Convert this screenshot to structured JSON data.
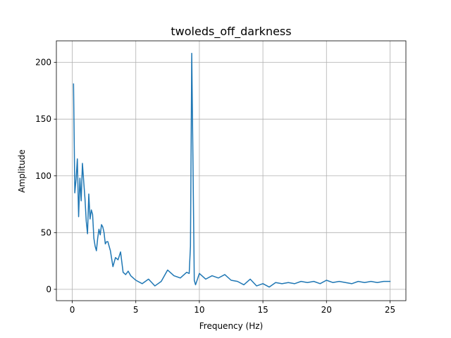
{
  "chart_data": {
    "type": "line",
    "title": "twoleds_off_darkness",
    "xlabel": "Frequency (Hz)",
    "ylabel": "Amplitude",
    "xlim": [
      -1.25,
      26.25
    ],
    "ylim": [
      -10,
      219
    ],
    "xticks": [
      0,
      5,
      10,
      15,
      20,
      25
    ],
    "yticks": [
      0,
      50,
      100,
      150,
      200
    ],
    "grid": true,
    "colors": {
      "series": "#1f77b4"
    },
    "series": [
      {
        "x": [
          0.1,
          0.2,
          0.3,
          0.4,
          0.5,
          0.6,
          0.7,
          0.8,
          0.9,
          1.0,
          1.1,
          1.2,
          1.3,
          1.4,
          1.5,
          1.6,
          1.7,
          1.8,
          1.9,
          2.0,
          2.1,
          2.2,
          2.3,
          2.4,
          2.5,
          2.6,
          2.7,
          2.8,
          2.9,
          3.0,
          3.2,
          3.4,
          3.6,
          3.8,
          4.0,
          4.2,
          4.4,
          4.6,
          4.8,
          5.0,
          5.5,
          6.0,
          6.5,
          7.0,
          7.5,
          8.0,
          8.5,
          9.0,
          9.2,
          9.3,
          9.4,
          9.5,
          9.6,
          9.7,
          10.0,
          10.5,
          11.0,
          11.5,
          12.0,
          12.5,
          13.0,
          13.5,
          14.0,
          14.5,
          15.0,
          15.5,
          16.0,
          16.5,
          17.0,
          17.5,
          18.0,
          18.5,
          19.0,
          19.5,
          20.0,
          20.5,
          21.0,
          21.5,
          22.0,
          22.5,
          23.0,
          23.5,
          24.0,
          24.5,
          25.0
        ],
        "y": [
          181,
          85,
          97,
          115,
          64,
          98,
          78,
          111,
          95,
          80,
          60,
          49,
          84,
          62,
          70,
          66,
          45,
          38,
          34,
          45,
          53,
          48,
          57,
          55,
          50,
          40,
          42,
          42,
          38,
          34,
          20,
          28,
          26,
          33,
          15,
          13,
          16,
          12,
          10,
          8,
          5,
          9,
          3,
          7,
          17,
          12,
          10,
          15,
          14,
          38,
          208,
          110,
          8,
          4,
          14,
          9,
          12,
          10,
          13,
          8,
          7,
          4,
          9,
          3,
          5,
          2,
          6,
          5,
          6,
          5,
          7,
          6,
          7,
          5,
          8,
          6,
          7,
          6,
          5,
          7,
          6,
          7,
          6,
          7,
          7
        ]
      }
    ]
  }
}
